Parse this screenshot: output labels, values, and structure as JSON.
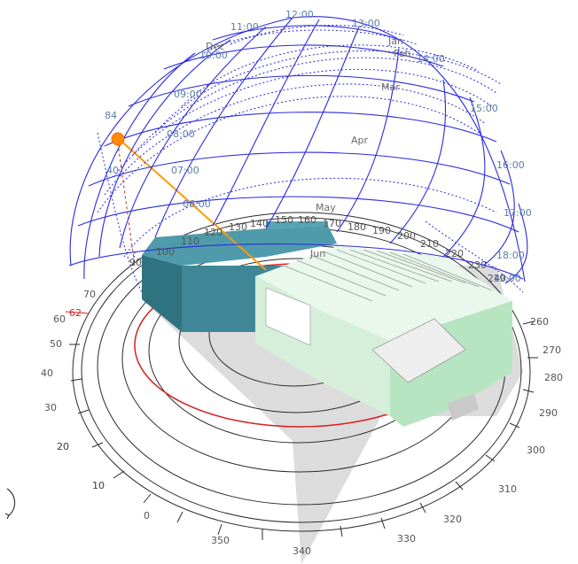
{
  "colors": {
    "grid": "#2a2ae0",
    "sun": "#ff8a00",
    "sun_ray": "#ff9a00",
    "altitude_ring": "#d81f1f",
    "building_dark": "#3f8796",
    "building_light": "#ccefd6",
    "shadow": "#dedede"
  },
  "hour_labels": [
    "09:00",
    "08:00",
    "07:00",
    "06:00",
    "11:00",
    "12:00",
    "13:00",
    "14:00",
    "15:00",
    "16:00",
    "17:00",
    "18:00",
    "19:00",
    "10:00"
  ],
  "month_labels": [
    "Jan",
    "Feb",
    "Mar",
    "Apr",
    "May",
    "Dec",
    "Jun"
  ],
  "azimuth_labels": [
    "90",
    "100",
    "110",
    "120",
    "130",
    "140",
    "150",
    "160",
    "170",
    "180",
    "190",
    "200",
    "210",
    "220",
    "230",
    "240",
    "260",
    "270",
    "280",
    "290",
    "300",
    "310",
    "320",
    "330",
    "340",
    "350",
    "0",
    "10",
    "20"
  ],
  "altitude_labels": [
    "70",
    "60",
    "50",
    "40",
    "30",
    "20",
    "10"
  ],
  "sun_altitude_label": "62",
  "sun_position_labels": [
    "84",
    "40"
  ]
}
